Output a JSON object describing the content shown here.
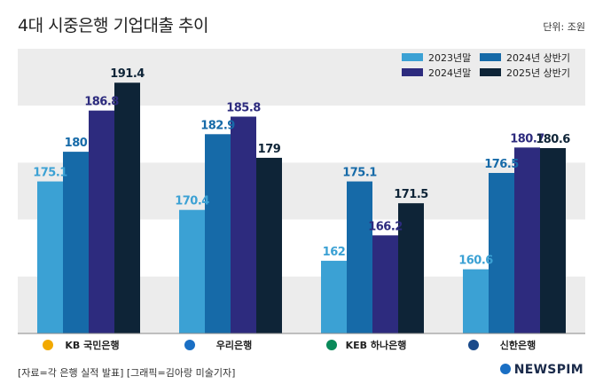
{
  "header": {
    "title": "4대 시중은행 기업대출 추이",
    "unit": "단위: 조원"
  },
  "footer": {
    "source": "[자료=각 은행 실적 발표] [그래픽=김아랑 미술기자]",
    "brand": "NEWSPIM"
  },
  "colors": {
    "s2023": "#3ba1d4",
    "s2024h1": "#166aa8",
    "s2024": "#2d2b7e",
    "s2025h1": "#0e2437"
  },
  "chart_data": {
    "type": "bar",
    "categories": [
      "KB 국민은행",
      "우리은행",
      "KEB 하나은행",
      "신한은행"
    ],
    "series": [
      {
        "name": "2023년말",
        "values": [
          175.1,
          170.4,
          162,
          160.6
        ]
      },
      {
        "name": "2024년 상반기",
        "values": [
          180,
          182.9,
          175.1,
          176.5
        ]
      },
      {
        "name": "2024년말",
        "values": [
          186.8,
          185.8,
          166.2,
          180.7
        ]
      },
      {
        "name": "2025년 상반기",
        "values": [
          191.4,
          179,
          171.5,
          180.6
        ]
      }
    ],
    "value_labels": [
      [
        "175.1",
        "180",
        "186.8",
        "191.4"
      ],
      [
        "170.4",
        "182.9",
        "185.8",
        "179"
      ],
      [
        "162",
        "175.1",
        "166.2",
        "171.5"
      ],
      [
        "160.6",
        "176.5",
        "180.7",
        "180.6"
      ]
    ],
    "ylim": [
      150,
      197
    ],
    "legend": "top-right",
    "grid": "alternating horizontal bands"
  }
}
